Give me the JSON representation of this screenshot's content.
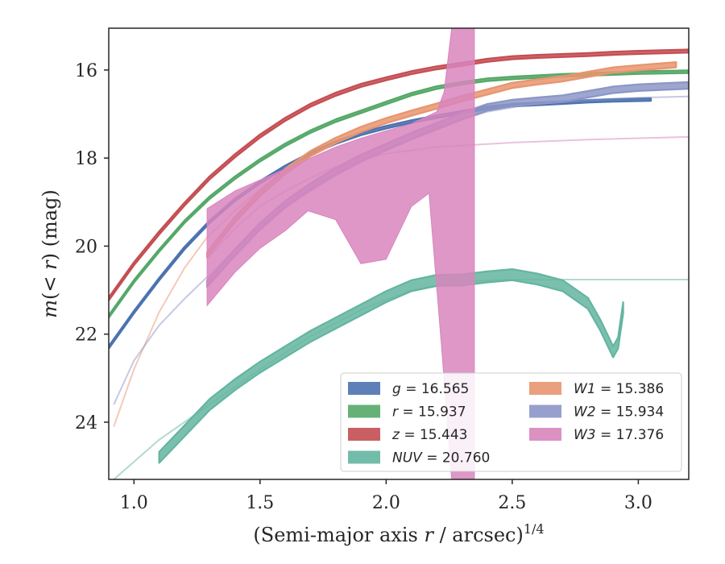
{
  "chart_data": {
    "type": "area",
    "xlabel": "(Semi-major axis r / arcsec)^{1/4}",
    "ylabel": "m(< r) (mag)",
    "xlim": [
      0.9,
      3.2
    ],
    "ylim": [
      25.3,
      15.05
    ],
    "y_inverted": true,
    "x_ticks": [
      "1.0",
      "1.5",
      "2.0",
      "2.5",
      "3.0"
    ],
    "x_tick_values": [
      1.0,
      1.5,
      2.0,
      2.5,
      3.0
    ],
    "y_ticks": [
      "16",
      "18",
      "20",
      "22",
      "24"
    ],
    "y_tick_values": [
      16,
      18,
      20,
      22,
      24
    ],
    "grid": false,
    "legend": {
      "placement": "lower-right",
      "columns": 2,
      "entries": [
        {
          "label": "g = 16.565",
          "color": "#4c72b0"
        },
        {
          "label": "r = 15.937",
          "color": "#55a868"
        },
        {
          "label": "z = 15.443",
          "color": "#c44e52"
        },
        {
          "label": "NUV = 20.760",
          "color": "#64b5a0"
        },
        {
          "label": "W1 = 15.386",
          "color": "#e8956f"
        },
        {
          "label": "W2 = 15.934",
          "color": "#8c96c6"
        },
        {
          "label": "W3 = 17.376",
          "color": "#d885bd"
        }
      ]
    },
    "series": [
      {
        "name": "g = 16.565",
        "color": "#4c72b0",
        "band_width_mag": 0.06,
        "data": [
          [
            0.9,
            22.3
          ],
          [
            1.0,
            21.5
          ],
          [
            1.1,
            20.75
          ],
          [
            1.2,
            20.05
          ],
          [
            1.3,
            19.45
          ],
          [
            1.4,
            18.95
          ],
          [
            1.5,
            18.55
          ],
          [
            1.6,
            18.2
          ],
          [
            1.7,
            17.9
          ],
          [
            1.8,
            17.65
          ],
          [
            1.9,
            17.45
          ],
          [
            2.0,
            17.3
          ],
          [
            2.1,
            17.17
          ],
          [
            2.2,
            17.06
          ],
          [
            2.3,
            16.96
          ],
          [
            2.4,
            16.86
          ],
          [
            2.5,
            16.8
          ],
          [
            2.6,
            16.77
          ],
          [
            2.7,
            16.74
          ],
          [
            2.8,
            16.71
          ],
          [
            2.9,
            16.69
          ],
          [
            3.05,
            16.67
          ]
        ],
        "model": null
      },
      {
        "name": "r = 15.937",
        "color": "#55a868",
        "band_width_mag": 0.06,
        "data": [
          [
            0.9,
            21.6
          ],
          [
            1.0,
            20.8
          ],
          [
            1.1,
            20.1
          ],
          [
            1.2,
            19.45
          ],
          [
            1.3,
            18.9
          ],
          [
            1.4,
            18.45
          ],
          [
            1.5,
            18.05
          ],
          [
            1.6,
            17.7
          ],
          [
            1.7,
            17.4
          ],
          [
            1.8,
            17.15
          ],
          [
            1.9,
            16.95
          ],
          [
            2.0,
            16.75
          ],
          [
            2.1,
            16.55
          ],
          [
            2.2,
            16.4
          ],
          [
            2.3,
            16.3
          ],
          [
            2.4,
            16.22
          ],
          [
            2.5,
            16.18
          ],
          [
            2.6,
            16.15
          ],
          [
            2.7,
            16.12
          ],
          [
            2.8,
            16.1
          ],
          [
            2.9,
            16.08
          ],
          [
            3.0,
            16.06
          ],
          [
            3.2,
            16.04
          ]
        ],
        "model": null
      },
      {
        "name": "z = 15.443",
        "color": "#c44e52",
        "band_width_mag": 0.07,
        "data": [
          [
            0.9,
            21.2
          ],
          [
            1.0,
            20.4
          ],
          [
            1.1,
            19.7
          ],
          [
            1.2,
            19.05
          ],
          [
            1.3,
            18.45
          ],
          [
            1.4,
            17.95
          ],
          [
            1.5,
            17.5
          ],
          [
            1.6,
            17.12
          ],
          [
            1.7,
            16.8
          ],
          [
            1.8,
            16.55
          ],
          [
            1.9,
            16.35
          ],
          [
            2.0,
            16.2
          ],
          [
            2.1,
            16.06
          ],
          [
            2.2,
            15.95
          ],
          [
            2.3,
            15.87
          ],
          [
            2.4,
            15.78
          ],
          [
            2.5,
            15.72
          ],
          [
            2.6,
            15.69
          ],
          [
            2.7,
            15.67
          ],
          [
            2.8,
            15.65
          ],
          [
            2.9,
            15.62
          ],
          [
            3.0,
            15.6
          ],
          [
            3.2,
            15.57
          ]
        ],
        "model": null
      },
      {
        "name": "NUV = 20.760",
        "color": "#64b5a0",
        "band_width_mag": 0.25,
        "data": [
          [
            1.1,
            24.8
          ],
          [
            1.2,
            24.2
          ],
          [
            1.3,
            23.6
          ],
          [
            1.4,
            23.15
          ],
          [
            1.5,
            22.75
          ],
          [
            1.6,
            22.4
          ],
          [
            1.7,
            22.05
          ],
          [
            1.8,
            21.75
          ],
          [
            1.9,
            21.45
          ],
          [
            2.0,
            21.15
          ],
          [
            2.1,
            20.9
          ],
          [
            2.2,
            20.78
          ],
          [
            2.3,
            20.77
          ],
          [
            2.4,
            20.7
          ],
          [
            2.5,
            20.65
          ],
          [
            2.6,
            20.75
          ],
          [
            2.7,
            20.9
          ],
          [
            2.8,
            21.3
          ],
          [
            2.85,
            21.8
          ],
          [
            2.9,
            22.4
          ],
          [
            2.92,
            22.2
          ],
          [
            2.94,
            21.4
          ]
        ],
        "band_low": [
          [
            1.1,
            25.1
          ],
          [
            1.3,
            23.8
          ]
        ],
        "model": {
          "data": [
            [
              0.9,
              25.4
            ],
            [
              1.1,
              24.4
            ],
            [
              1.3,
              23.6
            ],
            [
              1.5,
              22.8
            ],
            [
              1.7,
              22.05
            ],
            [
              1.9,
              21.45
            ],
            [
              2.1,
              21.0
            ],
            [
              2.3,
              20.8
            ],
            [
              2.5,
              20.76
            ],
            [
              3.2,
              20.76
            ]
          ]
        }
      },
      {
        "name": "W1 = 15.386",
        "color": "#e8956f",
        "band_width_mag": 0.12,
        "data": [
          [
            1.29,
            20.2
          ],
          [
            1.4,
            19.4
          ],
          [
            1.5,
            18.8
          ],
          [
            1.6,
            18.3
          ],
          [
            1.7,
            17.9
          ],
          [
            1.8,
            17.6
          ],
          [
            1.9,
            17.35
          ],
          [
            2.0,
            17.15
          ],
          [
            2.1,
            16.98
          ],
          [
            2.2,
            16.82
          ],
          [
            2.3,
            16.65
          ],
          [
            2.4,
            16.5
          ],
          [
            2.5,
            16.35
          ],
          [
            2.6,
            16.27
          ],
          [
            2.7,
            16.2
          ],
          [
            2.8,
            16.1
          ],
          [
            2.9,
            16.0
          ],
          [
            3.0,
            15.95
          ],
          [
            3.15,
            15.88
          ]
        ],
        "model": {
          "data": [
            [
              0.92,
              24.1
            ],
            [
              1.0,
              22.8
            ],
            [
              1.1,
              21.5
            ],
            [
              1.2,
              20.5
            ],
            [
              1.29,
              19.8
            ],
            [
              1.4,
              19.2
            ],
            [
              1.5,
              18.7
            ],
            [
              1.6,
              18.3
            ]
          ]
        }
      },
      {
        "name": "W2 = 15.934",
        "color": "#8c96c6",
        "band_width_mag": 0.15,
        "data": [
          [
            1.29,
            20.85
          ],
          [
            1.4,
            20.15
          ],
          [
            1.5,
            19.55
          ],
          [
            1.6,
            19.05
          ],
          [
            1.7,
            18.65
          ],
          [
            1.8,
            18.3
          ],
          [
            1.9,
            18.0
          ],
          [
            2.0,
            17.75
          ],
          [
            2.1,
            17.5
          ],
          [
            2.2,
            17.28
          ],
          [
            2.3,
            17.05
          ],
          [
            2.4,
            16.85
          ],
          [
            2.5,
            16.75
          ],
          [
            2.6,
            16.7
          ],
          [
            2.7,
            16.65
          ],
          [
            2.8,
            16.55
          ],
          [
            2.9,
            16.45
          ],
          [
            3.0,
            16.4
          ],
          [
            3.2,
            16.35
          ]
        ],
        "model": {
          "data": [
            [
              0.92,
              23.6
            ],
            [
              1.0,
              22.6
            ],
            [
              1.1,
              21.8
            ],
            [
              1.2,
              21.2
            ],
            [
              1.29,
              20.7
            ],
            [
              1.4,
              20.1
            ],
            [
              1.6,
              19.1
            ],
            [
              1.8,
              18.4
            ],
            [
              2.0,
              17.8
            ],
            [
              2.2,
              17.3
            ],
            [
              2.4,
              16.95
            ],
            [
              2.6,
              16.75
            ],
            [
              2.8,
              16.68
            ],
            [
              3.0,
              16.63
            ],
            [
              3.2,
              16.6
            ]
          ]
        }
      },
      {
        "name": "W3 = 17.376",
        "color": "#d885bd",
        "band_upper": [
          [
            1.29,
            19.15
          ],
          [
            1.4,
            18.75
          ],
          [
            1.5,
            18.5
          ],
          [
            1.6,
            18.25
          ],
          [
            1.7,
            18.0
          ],
          [
            1.8,
            17.75
          ],
          [
            1.9,
            17.55
          ],
          [
            2.0,
            17.38
          ],
          [
            2.1,
            17.22
          ],
          [
            2.2,
            16.95
          ],
          [
            2.23,
            16.5
          ],
          [
            2.26,
            15.05
          ],
          [
            2.35,
            15.05
          ]
        ],
        "band_lower": [
          [
            1.29,
            21.35
          ],
          [
            1.4,
            20.6
          ],
          [
            1.5,
            20.05
          ],
          [
            1.6,
            19.65
          ],
          [
            1.69,
            19.2
          ],
          [
            1.8,
            19.4
          ],
          [
            1.9,
            20.4
          ],
          [
            2.0,
            20.3
          ],
          [
            2.1,
            19.1
          ],
          [
            2.17,
            18.8
          ],
          [
            2.22,
            22.3
          ],
          [
            2.26,
            25.3
          ],
          [
            2.35,
            25.3
          ]
        ],
        "model": {
          "data": [
            [
              1.29,
              20.3
            ],
            [
              1.4,
              19.6
            ],
            [
              1.5,
              19.1
            ],
            [
              1.6,
              18.75
            ],
            [
              1.7,
              18.45
            ],
            [
              1.8,
              18.2
            ],
            [
              2.0,
              17.9
            ],
            [
              2.2,
              17.75
            ],
            [
              2.5,
              17.65
            ],
            [
              2.8,
              17.58
            ],
            [
              3.2,
              17.52
            ]
          ]
        }
      }
    ]
  }
}
